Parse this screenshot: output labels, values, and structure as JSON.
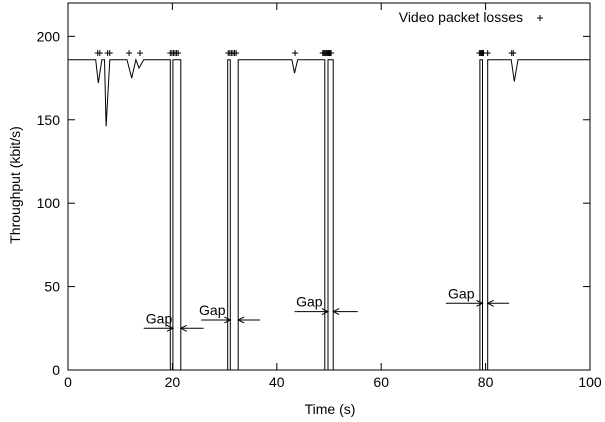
{
  "chart_data": {
    "type": "line",
    "xlabel": "Time (s)",
    "ylabel": "Throughput (kbit/s)",
    "xlim": [
      0,
      100
    ],
    "ylim": [
      0,
      220
    ],
    "x_ticks": [
      0,
      20,
      40,
      60,
      80,
      100
    ],
    "y_ticks": [
      0,
      50,
      100,
      150,
      200
    ],
    "x_tick_labels": [
      "0",
      "20",
      "40",
      "60",
      "80",
      "100"
    ],
    "y_tick_labels": [
      "0",
      "50",
      "100",
      "150",
      "200"
    ],
    "grid": false,
    "legend_position": "top-right",
    "series": [
      {
        "name": "",
        "kind": "line",
        "color": "#000000",
        "x": [
          0,
          5.3,
          5.8,
          6.5,
          7.0,
          7.3,
          8.0,
          11.3,
          12.2,
          13.0,
          13.6,
          14.5,
          15.2,
          19.6,
          19.6,
          20.1,
          20.1,
          21.6,
          21.6,
          30.6,
          30.6,
          31.1,
          31.1,
          32.6,
          32.6,
          42.9,
          43.4,
          44.0,
          49.2,
          49.2,
          49.8,
          49.8,
          50.8,
          50.8,
          78.9,
          78.9,
          79.4,
          79.4,
          80.4,
          80.4,
          84.9,
          85.5,
          86.2,
          100
        ],
        "y": [
          186,
          186,
          172,
          186,
          186,
          146,
          186,
          186,
          175,
          186,
          181,
          186,
          186,
          186,
          0,
          0,
          186,
          186,
          0,
          0,
          186,
          186,
          0,
          0,
          186,
          186,
          178,
          186,
          186,
          0,
          0,
          186,
          186,
          0,
          0,
          186,
          186,
          0,
          0,
          186,
          186,
          173,
          186,
          186
        ]
      },
      {
        "name": "Video packet losses",
        "kind": "points",
        "marker": "+",
        "color": "#000000",
        "x": [
          5.7,
          6.1,
          7.6,
          8.0,
          11.7,
          13.8,
          19.6,
          19.9,
          20.2,
          20.5,
          20.8,
          21.1,
          30.7,
          31.0,
          31.3,
          31.6,
          31.9,
          32.2,
          43.5,
          48.8,
          49.0,
          49.2,
          49.4,
          49.6,
          49.8,
          50.0,
          50.2,
          50.4,
          78.8,
          79.0,
          79.2,
          79.4,
          79.6,
          80.4,
          85.0,
          85.3
        ],
        "y": [
          190,
          190,
          190,
          190,
          190,
          190,
          190,
          190,
          190,
          190,
          190,
          190,
          190,
          190,
          190,
          190,
          190,
          190,
          190,
          190,
          190,
          190,
          190,
          190,
          190,
          190,
          190,
          190,
          190,
          190,
          190,
          190,
          190,
          190,
          190,
          190
        ]
      }
    ],
    "annotations": [
      {
        "text": "Gap",
        "text_x": 14.9,
        "text_y": 28,
        "arrow_left": {
          "from_x": 14.5,
          "to_x": 20.1,
          "y": 25
        },
        "arrow_right": {
          "from_x": 26.0,
          "to_x": 21.6,
          "y": 25
        }
      },
      {
        "text": "Gap",
        "text_x": 25.1,
        "text_y": 33,
        "arrow_left": {
          "from_x": 25.5,
          "to_x": 31.1,
          "y": 30
        },
        "arrow_right": {
          "from_x": 36.8,
          "to_x": 32.6,
          "y": 30
        }
      },
      {
        "text": "Gap",
        "text_x": 43.7,
        "text_y": 38,
        "arrow_left": {
          "from_x": 43.4,
          "to_x": 49.8,
          "y": 35
        },
        "arrow_right": {
          "from_x": 55.5,
          "to_x": 50.8,
          "y": 35
        }
      },
      {
        "text": "Gap",
        "text_x": 72.8,
        "text_y": 43,
        "arrow_left": {
          "from_x": 72.4,
          "to_x": 79.4,
          "y": 40
        },
        "arrow_right": {
          "from_x": 84.5,
          "to_x": 80.4,
          "y": 40
        }
      }
    ]
  }
}
